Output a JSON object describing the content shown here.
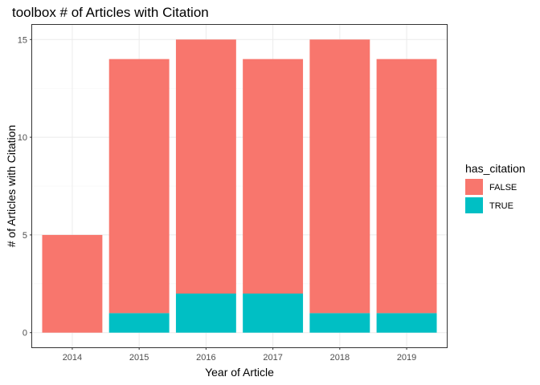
{
  "chart_data": {
    "type": "bar",
    "stacked": true,
    "title": "toolbox # of Articles with Citation",
    "xlabel": "Year of Article",
    "ylabel": "# of Articles with Citation",
    "categories": [
      "2014",
      "2015",
      "2016",
      "2017",
      "2018",
      "2019"
    ],
    "series": [
      {
        "name": "FALSE",
        "values": [
          5,
          13,
          13,
          12,
          14,
          13
        ],
        "color": "#F8766D"
      },
      {
        "name": "TRUE",
        "values": [
          0,
          1,
          2,
          2,
          1,
          1
        ],
        "color": "#00BFC4"
      }
    ],
    "ylim": [
      0,
      15
    ],
    "yticks": [
      0,
      5,
      10,
      15
    ],
    "grid": true,
    "legend": {
      "title": "has_citation",
      "placement": "right"
    }
  }
}
